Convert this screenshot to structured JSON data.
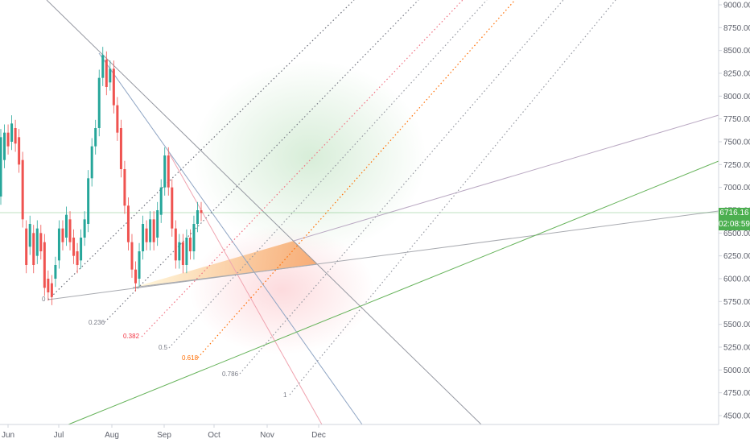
{
  "chart_data": {
    "type": "candlestick",
    "title": "",
    "y_axis": {
      "min": 4400,
      "max": 9090,
      "ticks": [
        "9000.00",
        "8750.00",
        "8500.00",
        "8250.00",
        "8000.00",
        "7750.00",
        "7500.00",
        "7250.00",
        "7000.00",
        "6750.00",
        "6500.00",
        "6250.00",
        "6000.00",
        "5750.00",
        "5500.00",
        "5250.00",
        "5000.00",
        "4750.00",
        "4500.00"
      ]
    },
    "x_axis": {
      "labels": [
        "Jun",
        "Jul",
        "Aug",
        "Sep",
        "Oct",
        "Nov",
        "Dec"
      ]
    },
    "current_price": {
      "value": "6716.16",
      "countdown": "02:08:59",
      "color": "#4caf50"
    },
    "fib_levels": [
      "0",
      "0.236",
      "0.382",
      "0.5",
      "0.618",
      "0.786",
      "1"
    ],
    "fib_colors": [
      "#787b86",
      "#787b86",
      "#f23645",
      "#787b86",
      "#ff6d00",
      "#787b86",
      "#787b86"
    ],
    "price_path": [
      [
        6900,
        7550
      ],
      [
        7300,
        7600
      ],
      [
        7600,
        7450
      ],
      [
        7500,
        7700
      ],
      [
        7650,
        7480
      ],
      [
        7550,
        7250
      ],
      [
        7300,
        6650
      ],
      [
        6550,
        6150
      ],
      [
        6350,
        6600
      ],
      [
        6500,
        6150
      ],
      [
        6250,
        6550
      ],
      [
        6500,
        6300
      ],
      [
        6400,
        5900
      ],
      [
        6000,
        5850
      ],
      [
        5950,
        5800
      ],
      [
        6000,
        6150
      ],
      [
        6200,
        6550
      ],
      [
        6550,
        6400
      ],
      [
        6450,
        6700
      ],
      [
        6650,
        6400
      ],
      [
        6450,
        6250
      ],
      [
        6300,
        6150
      ],
      [
        6200,
        6450
      ],
      [
        6450,
        6650
      ],
      [
        6600,
        7100
      ],
      [
        7100,
        7450
      ],
      [
        7450,
        7650
      ],
      [
        7650,
        8200
      ],
      [
        8200,
        8450
      ],
      [
        8400,
        8100
      ],
      [
        8150,
        8300
      ],
      [
        8300,
        7900
      ],
      [
        7900,
        7600
      ],
      [
        7650,
        7200
      ],
      [
        7200,
        6800
      ],
      [
        6800,
        6400
      ],
      [
        6400,
        6100
      ],
      [
        6100,
        5950
      ],
      [
        6000,
        6300
      ],
      [
        6300,
        6600
      ],
      [
        6550,
        6400
      ],
      [
        6400,
        6650
      ],
      [
        6650,
        6400
      ],
      [
        6450,
        6750
      ],
      [
        6700,
        7000
      ],
      [
        7000,
        7350
      ],
      [
        7350,
        7000
      ],
      [
        7000,
        6550
      ],
      [
        6550,
        6200
      ],
      [
        6200,
        6400
      ],
      [
        6400,
        6150
      ],
      [
        6150,
        6450
      ],
      [
        6450,
        6300
      ],
      [
        6300,
        6600
      ],
      [
        6600,
        6750
      ],
      [
        6750,
        6720
      ]
    ]
  }
}
